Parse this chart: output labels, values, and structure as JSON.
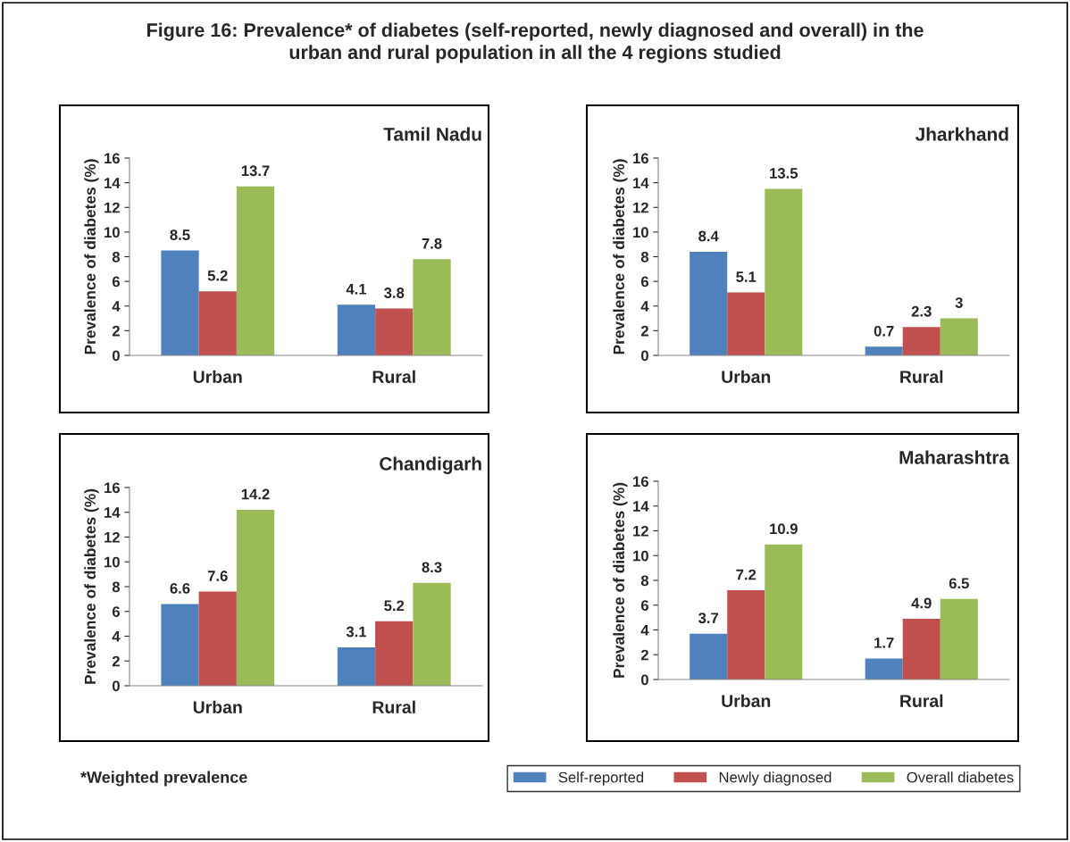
{
  "chart_data": [
    {
      "type": "other",
      "title": "Figure 16: Prevalence* of diabetes (self-reported, newly diagnosed and overall) in the\nurban and rural population in all the 4 regions studied",
      "annotations": [
        "*Weighted prevalence"
      ]
    },
    {
      "type": "bar",
      "title": "Tamil Nadu",
      "ylabel": "Prevalence of diabetes (%)",
      "categories": [
        "Urban",
        "Rural"
      ],
      "ylim": [
        0,
        16
      ],
      "yticks": [
        0,
        2,
        4,
        6,
        8,
        10,
        12,
        14,
        16
      ],
      "data_labels": true,
      "grid": false,
      "series": [
        {
          "color": "#4f81bd",
          "values": [
            8.5,
            4.1
          ]
        },
        {
          "color": "#c0504d",
          "values": [
            5.2,
            3.8
          ]
        },
        {
          "color": "#9bbb59",
          "values": [
            13.7,
            7.8
          ]
        }
      ]
    },
    {
      "type": "bar",
      "title": "Jharkhand",
      "ylabel": "Prevalence of diabetes (%)",
      "categories": [
        "Urban",
        "Rural"
      ],
      "ylim": [
        0,
        16
      ],
      "yticks": [
        0,
        2,
        4,
        6,
        8,
        10,
        12,
        14,
        16
      ],
      "data_labels": true,
      "grid": false,
      "series": [
        {
          "color": "#4f81bd",
          "values": [
            8.4,
            0.7
          ]
        },
        {
          "color": "#c0504d",
          "values": [
            5.1,
            2.3
          ]
        },
        {
          "color": "#9bbb59",
          "values": [
            13.5,
            3
          ]
        }
      ]
    },
    {
      "type": "bar",
      "title": "Chandigarh",
      "ylabel": "Prevalence of diabetes (%)",
      "categories": [
        "Urban",
        "Rural"
      ],
      "ylim": [
        0,
        16
      ],
      "yticks": [
        0,
        2,
        4,
        6,
        8,
        10,
        12,
        14,
        16
      ],
      "data_labels": true,
      "grid": false,
      "series": [
        {
          "color": "#4f81bd",
          "values": [
            6.6,
            3.1
          ]
        },
        {
          "color": "#c0504d",
          "values": [
            7.6,
            5.2
          ]
        },
        {
          "color": "#9bbb59",
          "values": [
            14.2,
            8.3
          ]
        }
      ]
    },
    {
      "type": "bar",
      "title": "Maharashtra",
      "ylabel": "Prevalence of diabetes (%)",
      "categories": [
        "Urban",
        "Rural"
      ],
      "ylim": [
        0,
        16
      ],
      "yticks": [
        0,
        2,
        4,
        6,
        8,
        10,
        12,
        14,
        16
      ],
      "data_labels": true,
      "grid": false,
      "legend": "bottom",
      "series": [
        {
          "name": "Self-reported",
          "color": "#4f81bd",
          "values": [
            3.7,
            1.7
          ]
        },
        {
          "name": "Newly diagnosed",
          "color": "#c0504d",
          "values": [
            7.2,
            4.9
          ]
        },
        {
          "name": "Overall diabetes",
          "color": "#9bbb59",
          "values": [
            10.9,
            6.5
          ]
        }
      ]
    }
  ]
}
